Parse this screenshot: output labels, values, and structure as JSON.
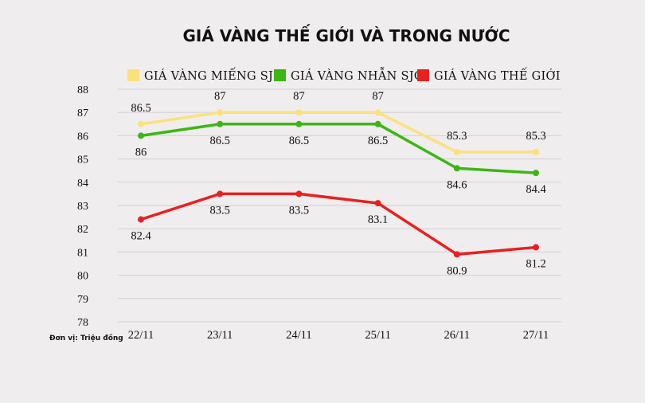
{
  "chart_data": {
    "type": "line",
    "title": "GIÁ VÀNG THẾ GIỚI VÀ TRONG NƯỚC",
    "unit_note": "Đơn vị: Triệu đồng",
    "categories": [
      "22/11",
      "23/11",
      "24/11",
      "25/11",
      "26/11",
      "27/11"
    ],
    "ylim": [
      78,
      88
    ],
    "yticks": [
      78,
      79,
      80,
      81,
      82,
      83,
      84,
      85,
      86,
      87,
      88
    ],
    "grid": true,
    "legend_position": "top",
    "series": [
      {
        "name": "GIÁ VÀNG MIẾNG SJC",
        "color": "#fbe17c",
        "values": [
          86.5,
          87,
          87,
          87,
          85.3,
          85.3
        ],
        "label_position": "above"
      },
      {
        "name": "GIÁ VÀNG NHẪN SJC",
        "color": "#3db614",
        "values": [
          86,
          86.5,
          86.5,
          86.5,
          84.6,
          84.4
        ],
        "label_position": "below"
      },
      {
        "name": "GIÁ VÀNG THẾ GIỚI",
        "color": "#e8201f",
        "values": [
          82.4,
          83.5,
          83.5,
          83.1,
          80.9,
          81.2
        ],
        "label_position": "below"
      }
    ]
  }
}
